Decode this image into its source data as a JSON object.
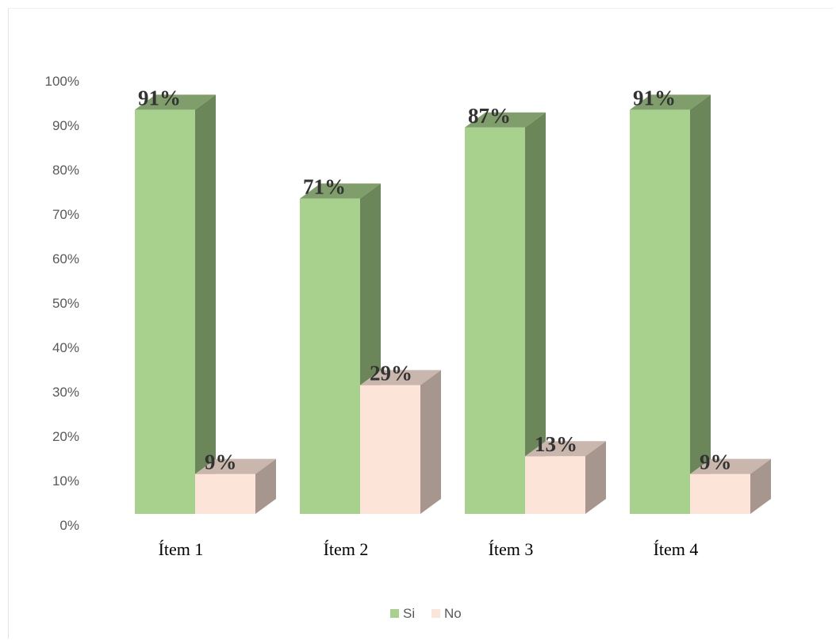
{
  "chart_data": {
    "type": "bar",
    "style": "3d-clustered-column",
    "title": "",
    "xlabel": "",
    "ylabel": "",
    "categories": [
      "Ítem 1",
      "Ítem 2",
      "Ítem 3",
      "Ítem 4"
    ],
    "series": [
      {
        "name": "Si",
        "values": [
          91,
          71,
          87,
          91
        ],
        "labels": [
          "91%",
          "71%",
          "87%",
          "91%"
        ],
        "color": "#a9d18e",
        "side_color": "#6b8759",
        "top_color": "#7f9e6b"
      },
      {
        "name": "No",
        "values": [
          9,
          29,
          13,
          9
        ],
        "labels": [
          "9%",
          "29%",
          "13%",
          "9%"
        ],
        "color": "#fde4d9",
        "side_color": "#a7968d",
        "top_color": "#c9b6ad"
      }
    ],
    "yticks": [
      "0%",
      "10%",
      "20%",
      "30%",
      "40%",
      "50%",
      "60%",
      "70%",
      "80%",
      "90%",
      "100%"
    ],
    "ylim": [
      0,
      100
    ],
    "grid": false,
    "legend_position": "bottom"
  }
}
